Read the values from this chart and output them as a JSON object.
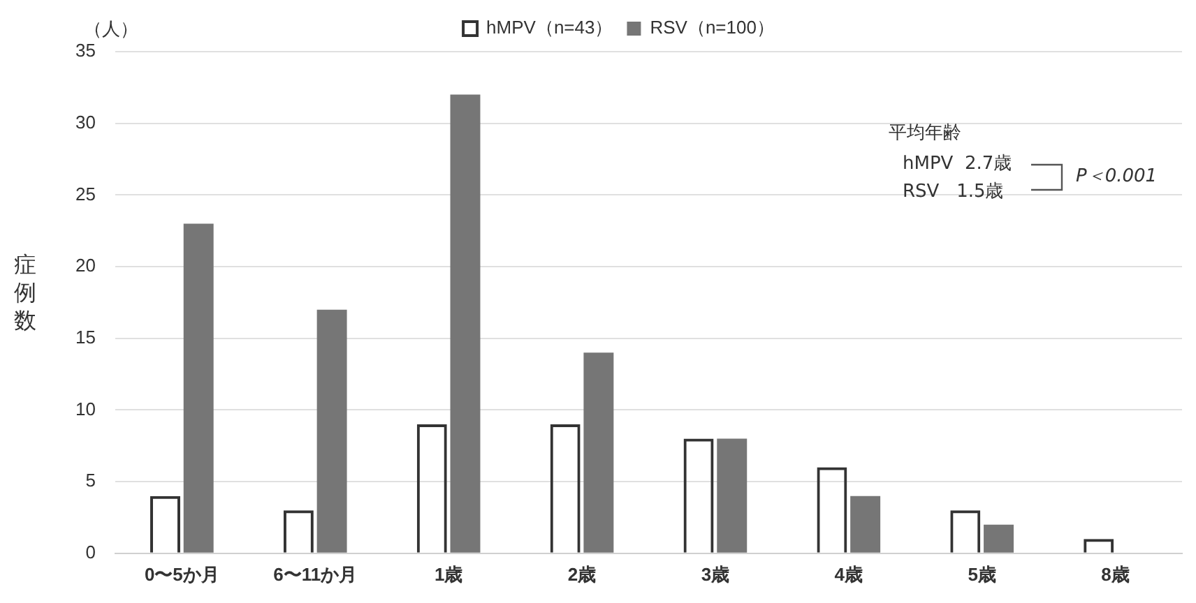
{
  "chart_data": {
    "type": "bar",
    "categories": [
      "0〜5か月",
      "6〜11か月",
      "1歳",
      "2歳",
      "3歳",
      "4歳",
      "5歳",
      "8歳"
    ],
    "series": [
      {
        "name": "hMPV（n=43）",
        "color": "#333333",
        "values": [
          4,
          3,
          9,
          9,
          8,
          6,
          3,
          1
        ]
      },
      {
        "name": "RSV（n=100）",
        "color": "#767676",
        "values": [
          23,
          17,
          32,
          14,
          8,
          4,
          2,
          0
        ]
      }
    ],
    "ylabel": "症例数",
    "ylim": [
      0,
      35
    ],
    "yticks": [
      0,
      5,
      10,
      15,
      20,
      25,
      30,
      35
    ],
    "grid": "y",
    "legend": "top",
    "annotations": [
      "（人）",
      "平均年齢",
      "hMPV  2.7歳",
      "RSV   1.5歳",
      "P＜0.001"
    ]
  }
}
